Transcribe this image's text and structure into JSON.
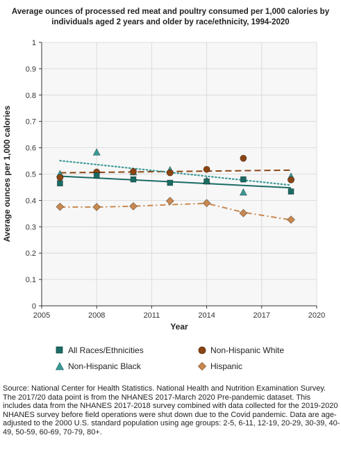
{
  "chart_data": {
    "type": "scatter",
    "title": "Average ounces of processed red meat and poultry consumed per 1,000 calories by individuals aged 2 years and older by race/ethnicity, 1994-2020",
    "xlabel": "Year",
    "ylabel": "Average ounces per 1,000 calories",
    "xlim": [
      2005,
      2020
    ],
    "ylim": [
      0,
      1
    ],
    "xticks": [
      2005,
      2008,
      2011,
      2014,
      2017,
      2020
    ],
    "yticks": [
      0,
      0.1,
      0.2,
      0.3,
      0.4,
      0.5,
      0.6,
      0.7,
      0.8,
      0.9,
      1
    ],
    "grid": true,
    "legend_position": "bottom",
    "series": [
      {
        "name": "All Races/Ethnicities",
        "color": "#1a6b63",
        "marker": "square",
        "trend": "solid",
        "x": [
          2006,
          2008,
          2010,
          2012,
          2014,
          2016,
          2018.6
        ],
        "y": [
          0.465,
          0.495,
          0.48,
          0.467,
          0.472,
          0.48,
          0.434
        ],
        "trend_line": [
          [
            2006,
            0.492
          ],
          [
            2018.6,
            0.448
          ]
        ]
      },
      {
        "name": "Non-Hispanic White",
        "color": "#8b4513",
        "marker": "circle",
        "trend": "dashed",
        "x": [
          2006,
          2008,
          2010,
          2012,
          2014,
          2016,
          2018.6
        ],
        "y": [
          0.487,
          0.508,
          0.51,
          0.505,
          0.518,
          0.56,
          0.478
        ],
        "trend_line": [
          [
            2006,
            0.505
          ],
          [
            2018.6,
            0.515
          ]
        ]
      },
      {
        "name": "Non-Hispanic Black",
        "color": "#3a9a97",
        "marker": "triangle",
        "trend": "dotted",
        "x": [
          2006,
          2008,
          2010,
          2012,
          2014,
          2016,
          2018.6
        ],
        "y": [
          0.5,
          0.582,
          0.507,
          0.515,
          0.475,
          0.43,
          0.49
        ],
        "trend_line": [
          [
            2006,
            0.551
          ],
          [
            2018.6,
            0.458
          ]
        ]
      },
      {
        "name": "Hispanic",
        "color": "#c8884f",
        "marker": "diamond",
        "trend": "dash-dot",
        "x": [
          2006,
          2008,
          2010,
          2012,
          2014,
          2016,
          2018.6
        ],
        "y": [
          0.376,
          0.375,
          0.378,
          0.398,
          0.39,
          0.352,
          0.327
        ],
        "trend_line": [
          [
            2006,
            0.375
          ],
          [
            2008,
            0.375
          ],
          [
            2010,
            0.378
          ],
          [
            2012,
            0.384
          ],
          [
            2014,
            0.389
          ],
          [
            2016,
            0.355
          ],
          [
            2018.6,
            0.326
          ]
        ]
      }
    ]
  },
  "source_note": [
    "Source: National Center for Health Statistics. National Health and Nutrition Examination Survey.",
    "The 2017/20 data point is from the NHANES 2017-March 2020 Pre-pandemic dataset. This includes data from the NHANES 2017-2018 survey combined with data collected for the 2019-2020 NHANES survey before field operations were shut down due to the Covid pandemic. Data are age-adjusted to the 2000 U.S. standard population using age groups: 2-5, 6-11, 12-19, 20-29, 30-39, 40-49, 50-59, 60-69, 70-79, 80+."
  ]
}
